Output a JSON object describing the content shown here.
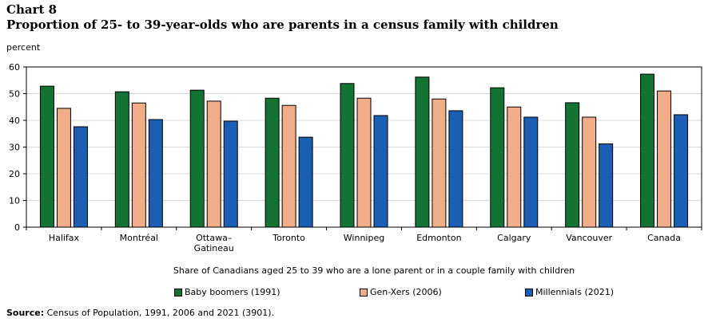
{
  "title": "Chart 8",
  "subtitle": "Proportion of 25- to 39-year-olds who are parents in a census family with children",
  "y_unit_label": "percent",
  "x_axis_title": "Share of Canadians aged 25 to 39 who are a lone parent or in a couple family with children",
  "source_label": "Source:",
  "source_text": " Census of Population, 1991, 2006 and 2021 (3901).",
  "colors": {
    "baby_boomers": "#137333",
    "gen_xers": "#f0ad87",
    "millennials": "#1a5fb4"
  },
  "chart_data": {
    "type": "bar",
    "categories": [
      "Halifax",
      "Montréal",
      "Ottawa–\nGatineau",
      "Toronto",
      "Winnipeg",
      "Edmonton",
      "Calgary",
      "Vancouver",
      "Canada"
    ],
    "series": [
      {
        "name": "Baby boomers (1991)",
        "values": [
          52.8,
          50.7,
          51.3,
          48.3,
          53.8,
          56.2,
          52.2,
          46.6,
          57.3
        ]
      },
      {
        "name": "Gen-Xers (2006)",
        "values": [
          44.5,
          46.5,
          47.2,
          45.6,
          48.3,
          48.0,
          45.0,
          41.2,
          51.0
        ]
      },
      {
        "name": "Millennials (2021)",
        "values": [
          37.6,
          40.3,
          39.7,
          33.7,
          41.8,
          43.6,
          41.2,
          31.2,
          42.1
        ]
      }
    ],
    "yticks": [
      0,
      10,
      20,
      30,
      40,
      50,
      60
    ],
    "ylim": [
      0,
      60
    ],
    "grid": true,
    "legend_position": "bottom"
  }
}
